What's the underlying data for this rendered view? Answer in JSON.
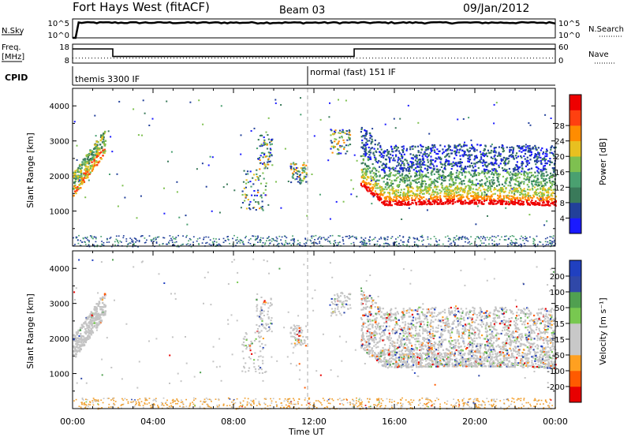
{
  "header": {
    "title": "Fort Hays West (fitACF)",
    "beam": "Beam 03",
    "date": "09/Jan/2012"
  },
  "noise_panel": {
    "left_label": "N.Sky",
    "left_ticks": [
      "10^5",
      "10^0"
    ],
    "right_ticks": [
      "10^5",
      "10^0"
    ],
    "right_label": "N.Search"
  },
  "freq_panel": {
    "left_label_line1": "Freq.",
    "left_label_line2": "[MHz]",
    "left_ticks": [
      "18",
      "8"
    ],
    "right_ticks": [
      "60",
      "0"
    ],
    "right_label": "Nave"
  },
  "cpid_panel": {
    "label": "CPID",
    "modes": [
      "themis 3300 IF",
      "normal (fast) 151 IF"
    ]
  },
  "x_axis": {
    "label": "Time UT",
    "ticks": [
      "00:00",
      "04:00",
      "08:00",
      "12:00",
      "16:00",
      "20:00",
      "00:00"
    ]
  },
  "colors": {
    "power": [
      "#1a1aff",
      "#22409a",
      "#3a7a5a",
      "#4aa070",
      "#7ec050",
      "#e8c020",
      "#ff8c00",
      "#ff4010",
      "#ee0000"
    ],
    "velocity": [
      "#e80000",
      "#ff5a00",
      "#ffa020",
      "#c8c8c8",
      "#c8c8c8",
      "#78c850",
      "#50a050",
      "#3048a8",
      "#2040c0"
    ]
  },
  "chart_data": [
    {
      "type": "line",
      "title": "",
      "xlabel": "",
      "series": [
        {
          "name": "N.Sky",
          "x": [
            0,
            0.2,
            24
          ],
          "values": [
            0,
            10000,
            10000
          ]
        },
        {
          "name": "N.Search",
          "x": [
            0,
            24
          ],
          "values": [
            10000,
            10000
          ]
        }
      ],
      "xlim": [
        0,
        24
      ],
      "ylim": [
        1,
        100000
      ],
      "log_scale": true
    },
    {
      "type": "line",
      "title": "",
      "xlabel": "",
      "series": [
        {
          "name": "Freq.",
          "x": [
            0,
            2,
            2,
            14,
            14,
            24
          ],
          "values": [
            15.5,
            15.5,
            11.5,
            11.5,
            15.5,
            15.5
          ]
        },
        {
          "name": "Nave",
          "x": [
            0,
            2,
            2,
            14,
            14,
            24
          ],
          "values": [
            16,
            16,
            16,
            16,
            16,
            16
          ]
        }
      ],
      "xlim": [
        0,
        24
      ],
      "ylim": [
        8,
        18
      ],
      "ylim_right": [
        0,
        60
      ]
    },
    {
      "type": "heatmap",
      "title": "",
      "ylabel": "Slant Range [km]",
      "xlim": [
        0,
        24
      ],
      "ylim": [
        0,
        4500
      ],
      "yticks": [
        "1000",
        "2000",
        "3000",
        "4000"
      ],
      "colorbar_label": "Power [dB]",
      "colorbar_ticks": [
        "4",
        "8",
        "12",
        "16",
        "20",
        "24",
        "28"
      ],
      "colorbar_range": [
        0,
        32
      ]
    },
    {
      "type": "heatmap",
      "title": "",
      "ylabel": "Slant Range [km]",
      "xlabel": "Time UT",
      "xlim": [
        0,
        24
      ],
      "ylim": [
        0,
        4500
      ],
      "yticks": [
        "1000",
        "2000",
        "3000",
        "4000"
      ],
      "colorbar_label": "Velocity [m s⁻¹]",
      "colorbar_ticks": [
        "200",
        "100",
        "50",
        "15",
        "-15",
        "-50",
        "-100",
        "-200"
      ]
    }
  ]
}
